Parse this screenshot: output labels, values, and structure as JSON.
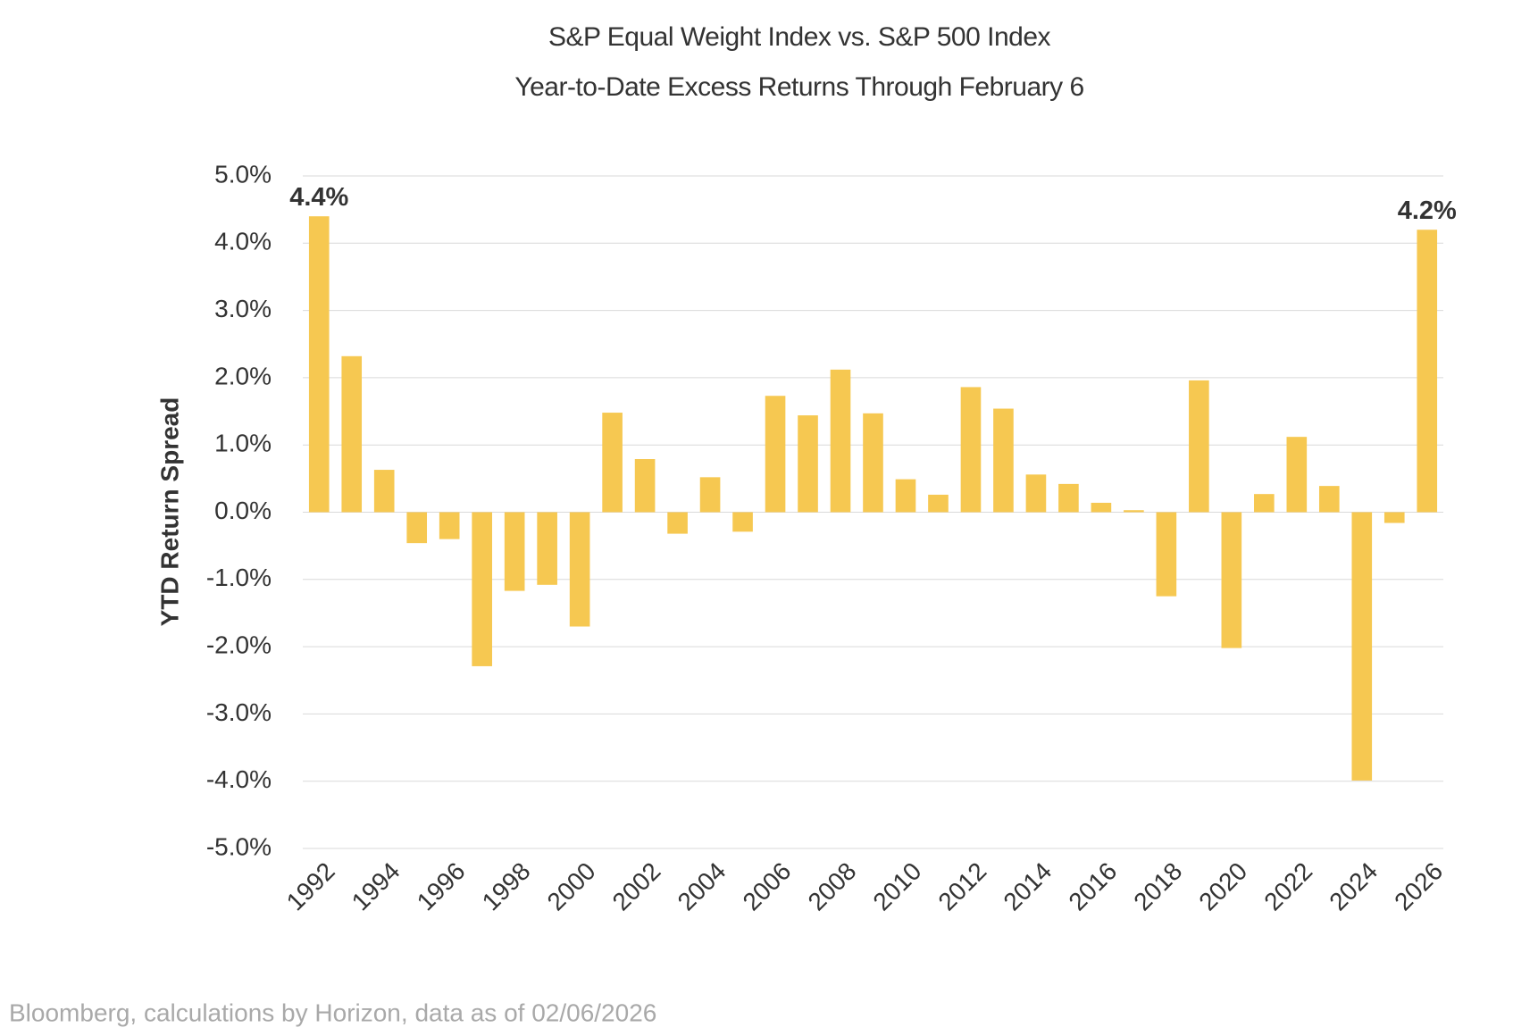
{
  "chart_data": {
    "type": "bar",
    "title": "S&P Equal Weight Index vs. S&P 500 Index",
    "subtitle": "Year-to-Date Excess Returns Through February 6",
    "y_label": "YTD Return Spread",
    "source": "Bloomberg, calculations by Horizon, data as of 02/06/2026",
    "categories": [
      "1992",
      null,
      "1994",
      null,
      "1996",
      null,
      "1998",
      null,
      "2000",
      null,
      "2002",
      null,
      "2004",
      null,
      "2006",
      null,
      "2008",
      null,
      "2010",
      null,
      "2012",
      null,
      "2014",
      null,
      "2016",
      null,
      "2018",
      null,
      "2020",
      null,
      "2022",
      null,
      "2024",
      null,
      "2026"
    ],
    "values": [
      4.4,
      2.32,
      0.63,
      -0.46,
      -0.4,
      -2.29,
      -1.17,
      -1.08,
      -1.7,
      1.48,
      0.79,
      -0.32,
      0.52,
      -0.29,
      1.73,
      1.44,
      2.12,
      1.47,
      0.49,
      0.26,
      1.86,
      1.54,
      0.56,
      0.42,
      0.14,
      0.03,
      -1.25,
      1.96,
      -2.02,
      0.27,
      1.12,
      0.39,
      -3.99,
      -0.16,
      4.2
    ],
    "value_labels": [
      "4.4%",
      null,
      null,
      null,
      null,
      null,
      null,
      null,
      null,
      null,
      null,
      null,
      null,
      null,
      null,
      null,
      null,
      null,
      null,
      null,
      null,
      null,
      null,
      null,
      null,
      null,
      null,
      null,
      null,
      null,
      null,
      null,
      null,
      null,
      "4.2%"
    ],
    "color": "#f6c851",
    "ylim": [
      -5,
      5
    ],
    "yticks": [
      {
        "value": -5,
        "label": "-5.0%"
      },
      {
        "value": -4,
        "label": "-4.0%"
      },
      {
        "value": -3,
        "label": "-3.0%"
      },
      {
        "value": -2,
        "label": "-2.0%"
      },
      {
        "value": -1,
        "label": "-1.0%"
      },
      {
        "value": 0,
        "label": "0.0%"
      },
      {
        "value": 1,
        "label": "1.0%"
      },
      {
        "value": 2,
        "label": "2.0%"
      },
      {
        "value": 3,
        "label": "3.0%"
      },
      {
        "value": 4,
        "label": "4.0%"
      },
      {
        "value": 5,
        "label": "5.0%"
      }
    ],
    "grid": true
  }
}
